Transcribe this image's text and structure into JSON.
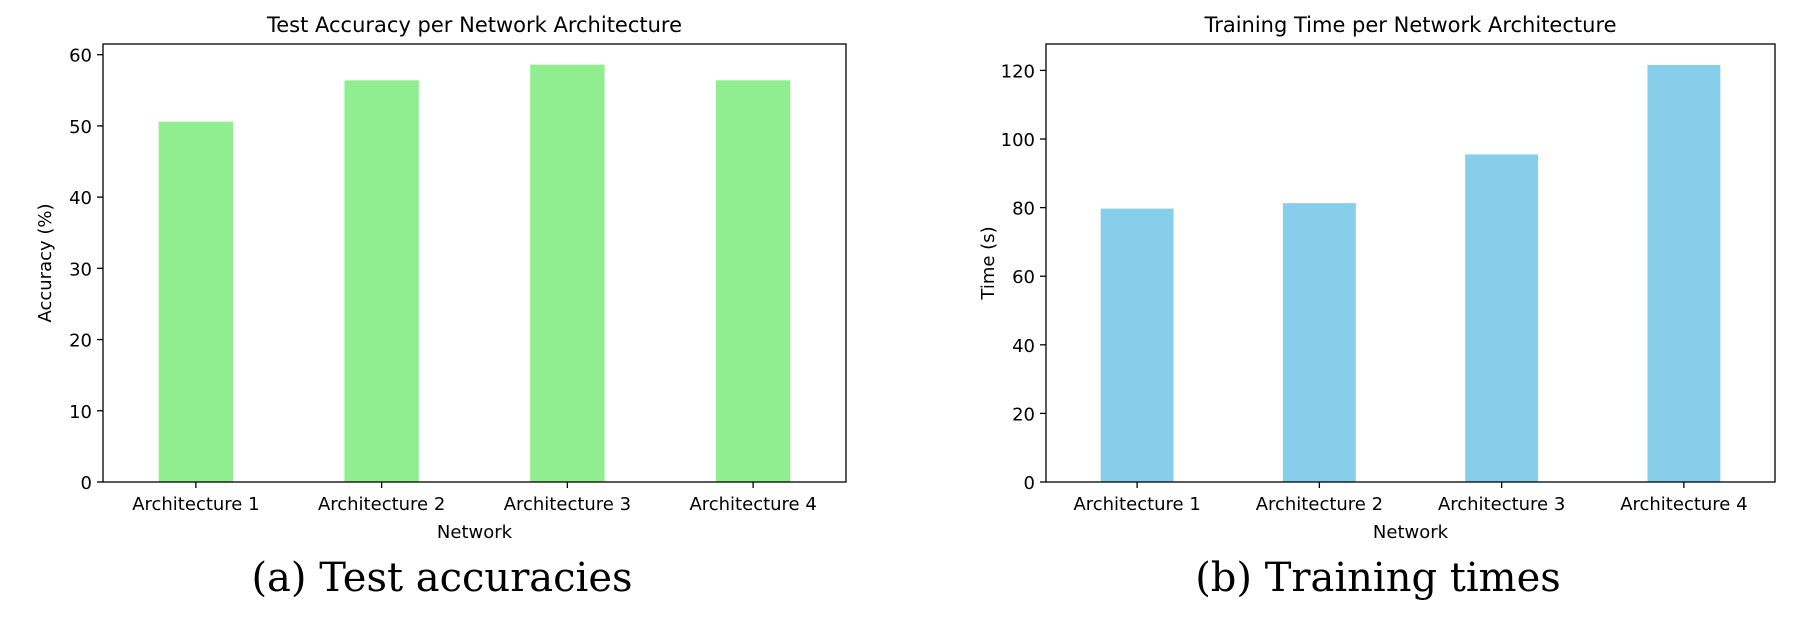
{
  "chart_data": [
    {
      "type": "bar",
      "title": "Test Accuracy per Network Architecture",
      "xlabel": "Network",
      "ylabel": "Accuracy (%)",
      "categories": [
        "Architecture 1",
        "Architecture 2",
        "Architecture 3",
        "Architecture 4"
      ],
      "values": [
        50.6,
        56.4,
        58.6,
        56.4
      ],
      "ylim": [
        0,
        61.5
      ],
      "yticks": [
        0,
        10,
        20,
        30,
        40,
        50,
        60
      ],
      "color": "#90ee90",
      "grid": false,
      "legend": false
    },
    {
      "type": "bar",
      "title": "Training Time per Network Architecture",
      "xlabel": "Network",
      "ylabel": "Time (s)",
      "categories": [
        "Architecture 1",
        "Architecture 2",
        "Architecture 3",
        "Architecture 4"
      ],
      "values": [
        79.7,
        81.3,
        95.5,
        121.6
      ],
      "ylim": [
        0,
        127.7
      ],
      "yticks": [
        0,
        20,
        40,
        60,
        80,
        100,
        120
      ],
      "color": "#87ceeb",
      "grid": false,
      "legend": false
    }
  ],
  "captions": {
    "a": "(a) Test accuracies",
    "b": "(b) Training times"
  }
}
